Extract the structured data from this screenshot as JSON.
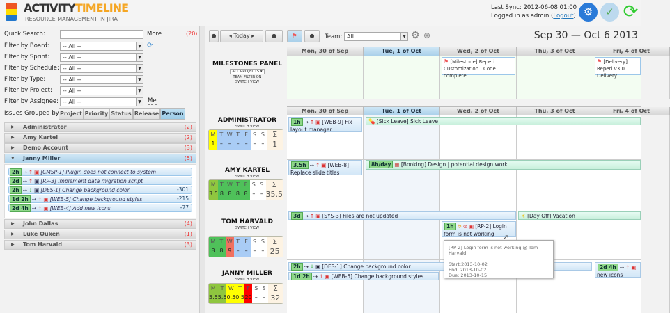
{
  "header": {
    "logo_a": "ACTIVITY",
    "logo_b": "TIMELINE",
    "subtitle": "RESOURCE MANAGEMENT IN JIRA",
    "last_sync": "Last Sync: 2012-06-08 01:00",
    "logged_in": "Logged in as admin (",
    "logout": "Logout",
    "logged_close": ")"
  },
  "filters": {
    "quick_search_label": "Quick Search:",
    "quick_search_value": "",
    "more": "More",
    "count": "(20)",
    "rows": [
      {
        "label": "Filter by Board:",
        "value": "-- All --"
      },
      {
        "label": "Filter by Sprint:",
        "value": "-- All --"
      },
      {
        "label": "Filter by Schedule:",
        "value": "-- All --"
      },
      {
        "label": "Filter by Type:",
        "value": "-- All --"
      },
      {
        "label": "Filter by Project:",
        "value": "-- All --"
      },
      {
        "label": "Filter by Assignee:",
        "value": "-- All --"
      }
    ],
    "me": "Me",
    "grouped_label": "Issues Grouped by:",
    "group_buttons": [
      "Project",
      "Priority",
      "Status",
      "Release",
      "Person"
    ],
    "group_active": "Person"
  },
  "accordion": [
    {
      "name": "Administrator",
      "count": "(2)"
    },
    {
      "name": "Amy Kartel",
      "count": "(2)"
    },
    {
      "name": "Demo Account",
      "count": "(3)"
    },
    {
      "name": "Janny Miller",
      "count": "(5)",
      "open": true
    },
    {
      "name": "John Dallas",
      "count": "(4)"
    },
    {
      "name": "Luke Ouken",
      "count": "(1)"
    },
    {
      "name": "Tom Harvald",
      "count": "(3)"
    }
  ],
  "janny_tasks": [
    {
      "est": "2h",
      "text": "[CMSP-1] Plugin does not connect to system",
      "num": ""
    },
    {
      "est": "2d",
      "text": "[RP-3] Implement data migration script",
      "num": ""
    },
    {
      "est": "2h",
      "text": "[DES-1] Change background color",
      "num": "-301"
    },
    {
      "est": "1d 2h",
      "text": "[WEB-5] Change background styles",
      "num": "-215"
    },
    {
      "est": "2d 4h",
      "text": "[WEB-4] Add new icons",
      "num": "-77"
    }
  ],
  "toolbar": {
    "today": "Today",
    "team_label": "Team:",
    "team_value": "All",
    "range": "Sep 30 — Oct 6 2013"
  },
  "days": [
    "Mon, 30 of Sep",
    "Tue, 1 of Oct",
    "Wed, 2 of Oct",
    "Thu, 3 of Oct",
    "Fri, 4 of Oct"
  ],
  "milestones": {
    "title": "MILESTONES PANEL",
    "projects": "ALL PROJECTS",
    "team_filter": "TEAM FILTER ON",
    "switch": "SWITCH VIEW",
    "items": [
      "[Milestone] Reperi Customization | Code complete",
      "[Delivery] Reperi v3.0 Delivery"
    ]
  },
  "switch_view": "SWITCH VIEW",
  "people": [
    {
      "name": "ADMINISTRATOR",
      "days": [
        "M",
        "T",
        "W",
        "T",
        "F",
        "S",
        "S"
      ],
      "values": [
        "1",
        "–",
        "–",
        "–",
        "–",
        "–",
        "–"
      ],
      "total": "1",
      "colors": [
        "#ffff00",
        "#a9ccf5",
        "#a9ccf5",
        "#a9ccf5",
        "#a9ccf5",
        "#ffffff",
        "#ffffff"
      ]
    },
    {
      "name": "AMY KARTEL",
      "days": [
        "M",
        "T",
        "W",
        "T",
        "F",
        "S",
        "S"
      ],
      "values": [
        "3.5",
        "8",
        "8",
        "8",
        "8",
        "–",
        "–"
      ],
      "total": "35.5",
      "colors": [
        "#8fc63f",
        "#4fc15a",
        "#4fc15a",
        "#4fc15a",
        "#4fc15a",
        "#ffffff",
        "#ffffff"
      ]
    },
    {
      "name": "TOM HARVALD",
      "days": [
        "M",
        "T",
        "W",
        "T",
        "F",
        "S",
        "S"
      ],
      "values": [
        "8",
        "8",
        "9",
        "–",
        "–",
        "–",
        "–"
      ],
      "total": "25",
      "colors": [
        "#4fc15a",
        "#4fc15a",
        "#f07060",
        "#a9ccf5",
        "#a9ccf5",
        "#ffffff",
        "#ffffff"
      ]
    },
    {
      "name": "JANNY MILLER",
      "days": [
        "M",
        "T",
        "W",
        "T",
        "F",
        "S",
        "S"
      ],
      "values": [
        "5.5",
        "5.5",
        "0.5",
        "0.5",
        "20",
        "–",
        "–"
      ],
      "total": "32",
      "colors": [
        "#8fc63f",
        "#8fc63f",
        "#ffff00",
        "#ffff00",
        "#ff0000",
        "#ffffff",
        "#ffffff"
      ]
    }
  ],
  "events": {
    "admin_web9": {
      "est": "1h",
      "text": "[WEB-9] Fix layout manager"
    },
    "admin_sick": "[Sick Leave] Sick Leave",
    "amy_web8": {
      "est": "3.5h",
      "text": "[WEB-8] Replace slide titles"
    },
    "amy_booking": {
      "est": "8h/day",
      "text": "[Booking] Design | potential design work"
    },
    "tom_sys3": {
      "est": "3d",
      "text": "[SYS-3] Files are not updated"
    },
    "tom_dayoff": "[Day Off] Vacation",
    "tom_rp2": {
      "est": "1h",
      "text": "[RP-2] Login form is not working"
    },
    "janny_des1": {
      "est": "2h",
      "text": "[DES-1] Change background color"
    },
    "janny_web5": {
      "est": "1d 2h",
      "text": "[WEB-5] Change background styles"
    },
    "janny_web4": {
      "est": "2d 4h",
      "text": "new icons"
    }
  },
  "tooltip": {
    "title": "[RP-2] Login form is not working @ Tom Harvald",
    "start": "Start:2013-10-02",
    "end": "End: 2013-10-02",
    "due": "Due: 2013-10-15"
  }
}
